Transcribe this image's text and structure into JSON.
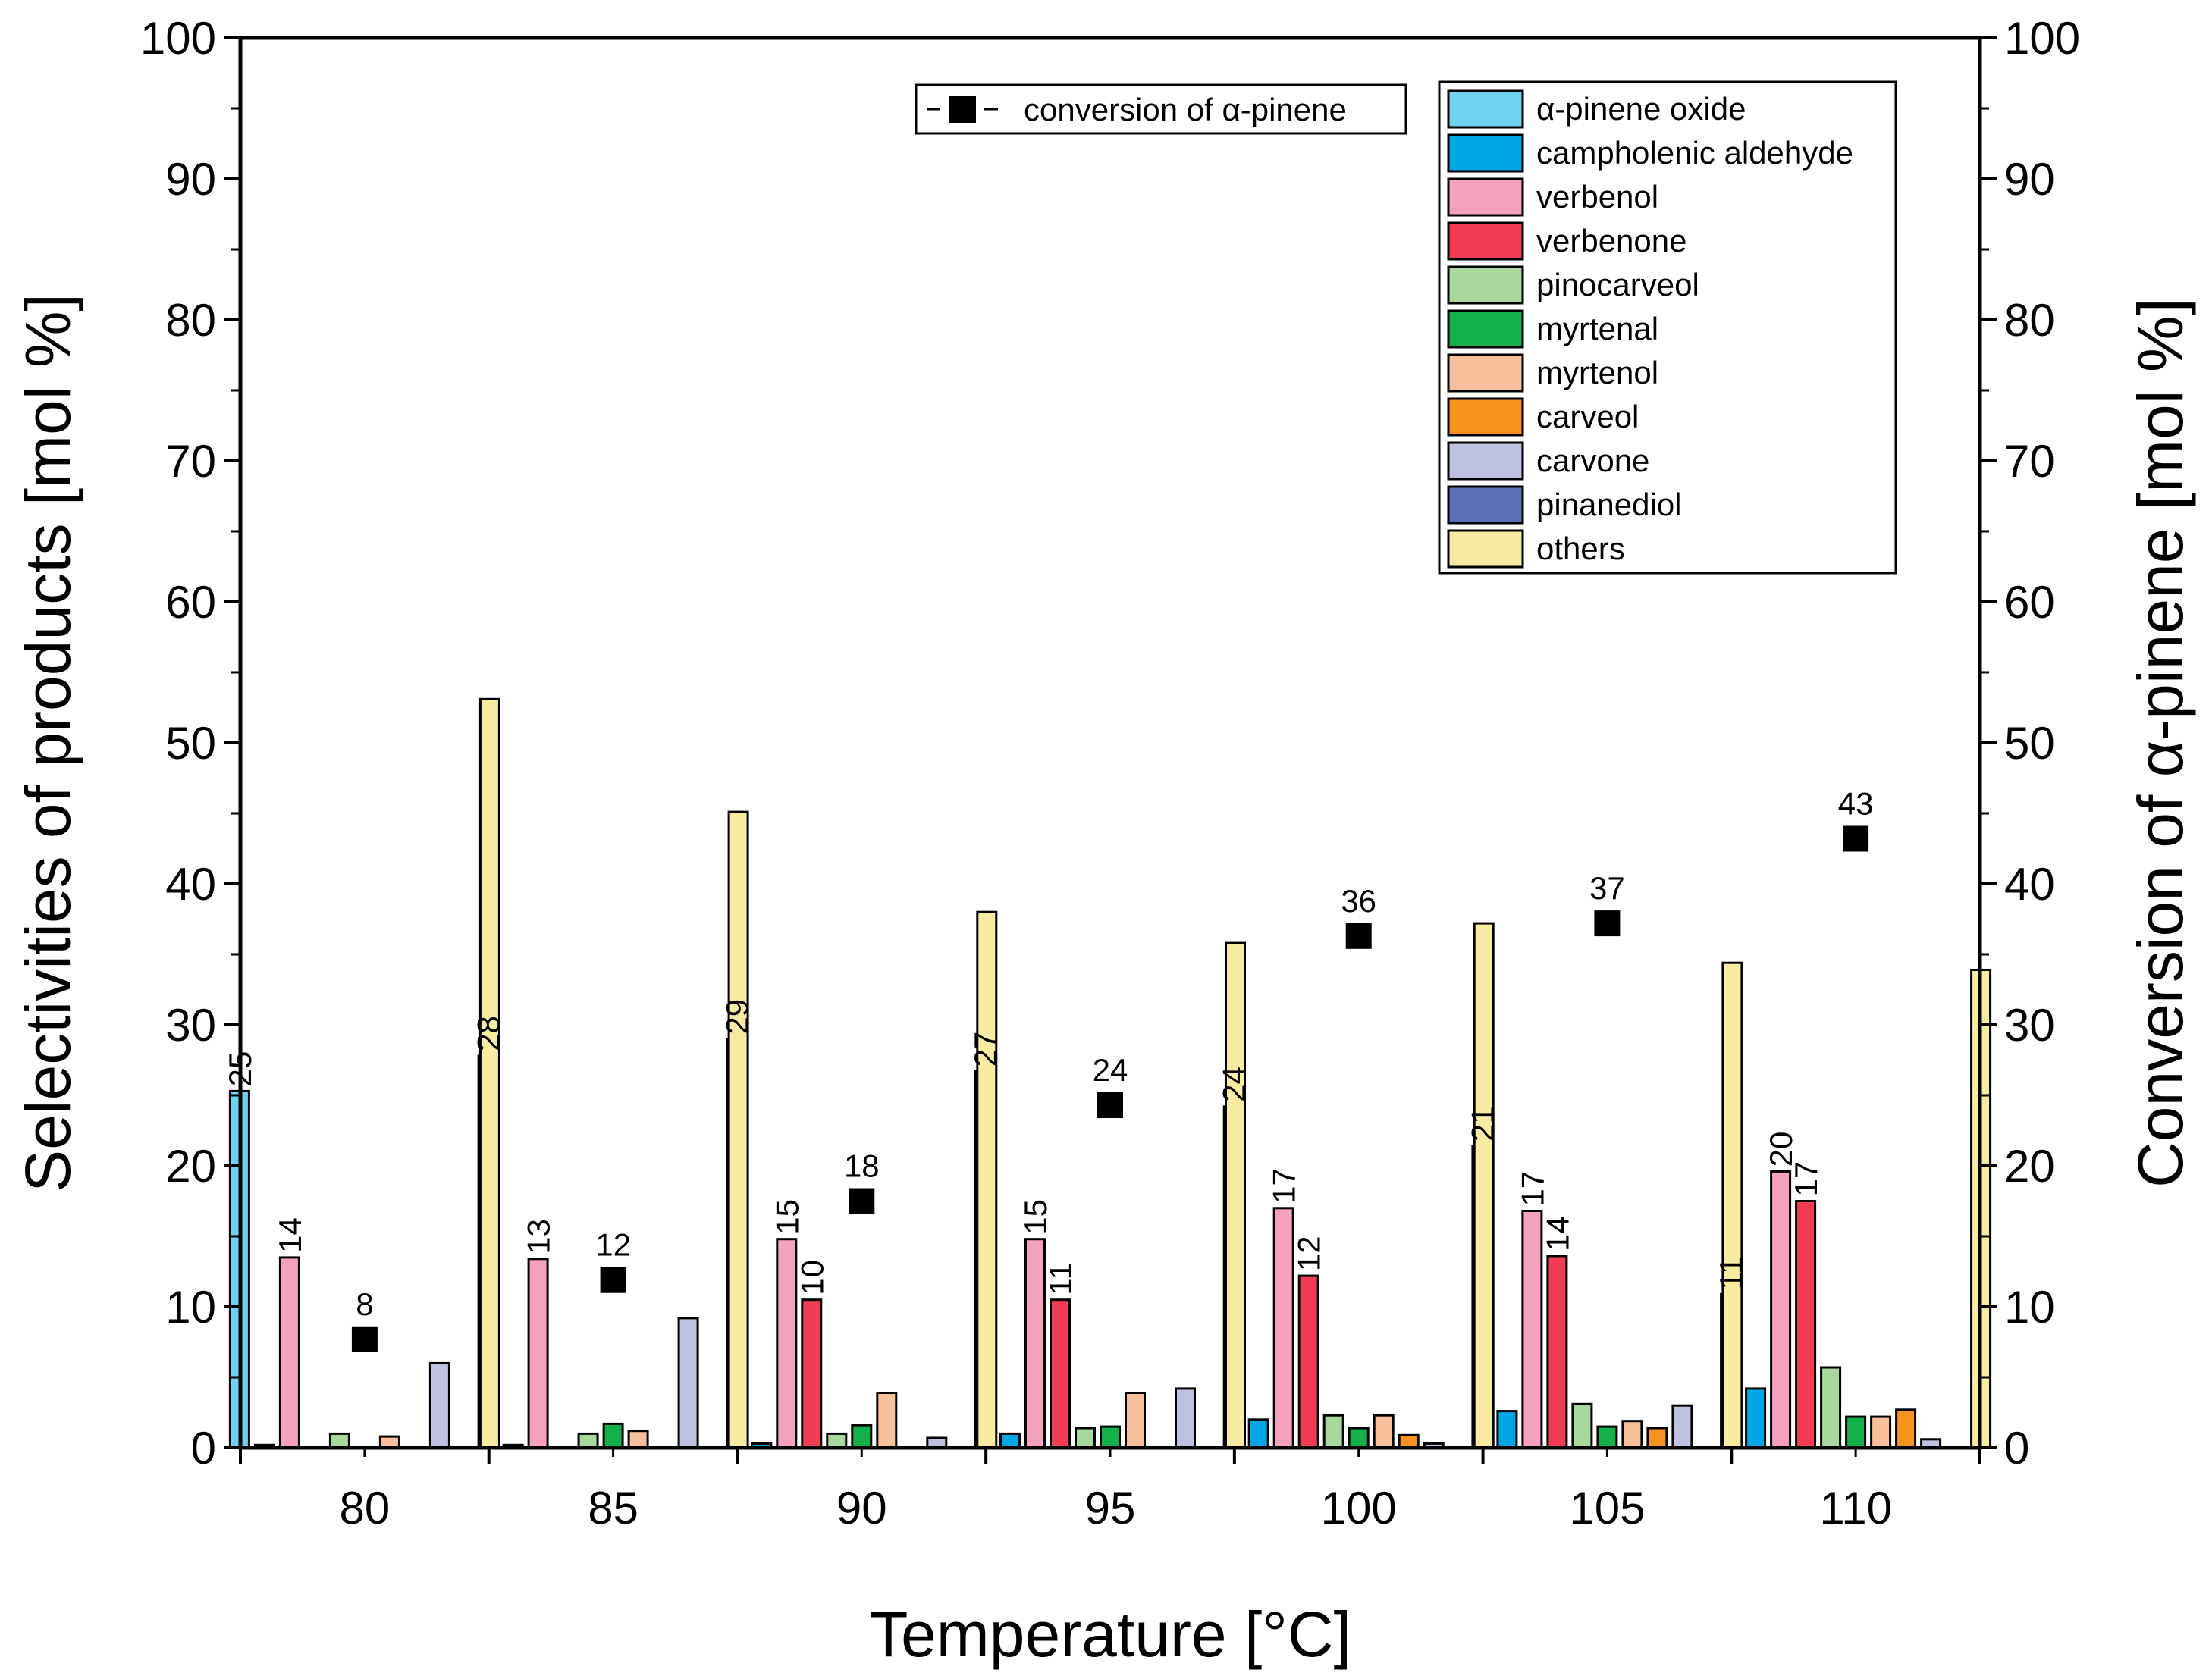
{
  "chart_data": {
    "type": "bar",
    "categories": [
      "80",
      "85",
      "90",
      "95",
      "100",
      "105",
      "110"
    ],
    "xlabel": "Temperature [°C]",
    "ylabel_left": "Selectivities of products [mol %]",
    "ylabel_right": "Conversion of α-pinene [mol %]",
    "ylim": [
      0,
      100
    ],
    "yticks": [
      "0",
      "10",
      "20",
      "30",
      "40",
      "50",
      "60",
      "70",
      "80",
      "90",
      "100"
    ],
    "legend_position": "top-right",
    "series": [
      {
        "name": "α-pinene oxide",
        "color": "#6dd3f0",
        "values": [
          25.3,
          27.8,
          29.0,
          26.7,
          24.2,
          21.4,
          10.9
        ],
        "labels": [
          "25",
          "28",
          "29",
          "27",
          "24",
          "21",
          "11"
        ]
      },
      {
        "name": "campholenic aldehyde",
        "color": "#00a6e6",
        "values": [
          0.2,
          0.2,
          0.3,
          1.0,
          2.0,
          2.6,
          4.2
        ],
        "labels": []
      },
      {
        "name": "verbenol",
        "color": "#f7a1c0",
        "values": [
          13.5,
          13.4,
          14.8,
          14.8,
          17.0,
          16.8,
          19.6
        ],
        "labels": [
          "14",
          "13",
          "15",
          "15",
          "17",
          "17",
          "20"
        ]
      },
      {
        "name": "verbenone",
        "color": "#f03c55",
        "values": [
          0,
          0,
          10.5,
          10.5,
          12.2,
          13.6,
          17.5
        ],
        "labels": [
          "",
          "",
          "10",
          "11",
          "12",
          "14",
          "17"
        ]
      },
      {
        "name": "pinocarveol",
        "color": "#a8d89c",
        "values": [
          1.0,
          1.0,
          1.0,
          1.4,
          2.3,
          3.1,
          5.7
        ],
        "labels": []
      },
      {
        "name": "myrtenal",
        "color": "#14b04c",
        "values": [
          0,
          1.7,
          1.6,
          1.5,
          1.4,
          1.5,
          2.2
        ],
        "labels": []
      },
      {
        "name": "myrtenol",
        "color": "#f8c09a",
        "values": [
          0.8,
          1.2,
          3.9,
          3.9,
          2.3,
          1.9,
          2.2
        ],
        "labels": []
      },
      {
        "name": "carveol",
        "color": "#f7921e",
        "values": [
          0,
          0,
          0,
          0,
          0.9,
          1.4,
          2.7
        ],
        "labels": []
      },
      {
        "name": "carvone",
        "color": "#bfc1e0",
        "values": [
          6.0,
          9.2,
          0.7,
          4.2,
          0.3,
          3.0,
          0.6
        ],
        "labels": []
      },
      {
        "name": "pinanediol",
        "color": "#5a6fb5",
        "values": [
          0,
          0,
          0,
          0,
          0,
          0,
          0
        ],
        "labels": []
      },
      {
        "name": "others",
        "color": "#f8eba2",
        "values": [
          53.1,
          45.1,
          38.0,
          35.8,
          37.2,
          34.4,
          33.9
        ],
        "labels": []
      }
    ],
    "conversion": {
      "name": "conversion of α-pinene",
      "color": "#000000",
      "values": [
        7.7,
        11.9,
        17.5,
        24.3,
        36.3,
        37.2,
        43.2
      ],
      "labels": [
        "8",
        "12",
        "18",
        "24",
        "36",
        "37",
        "43"
      ]
    }
  }
}
